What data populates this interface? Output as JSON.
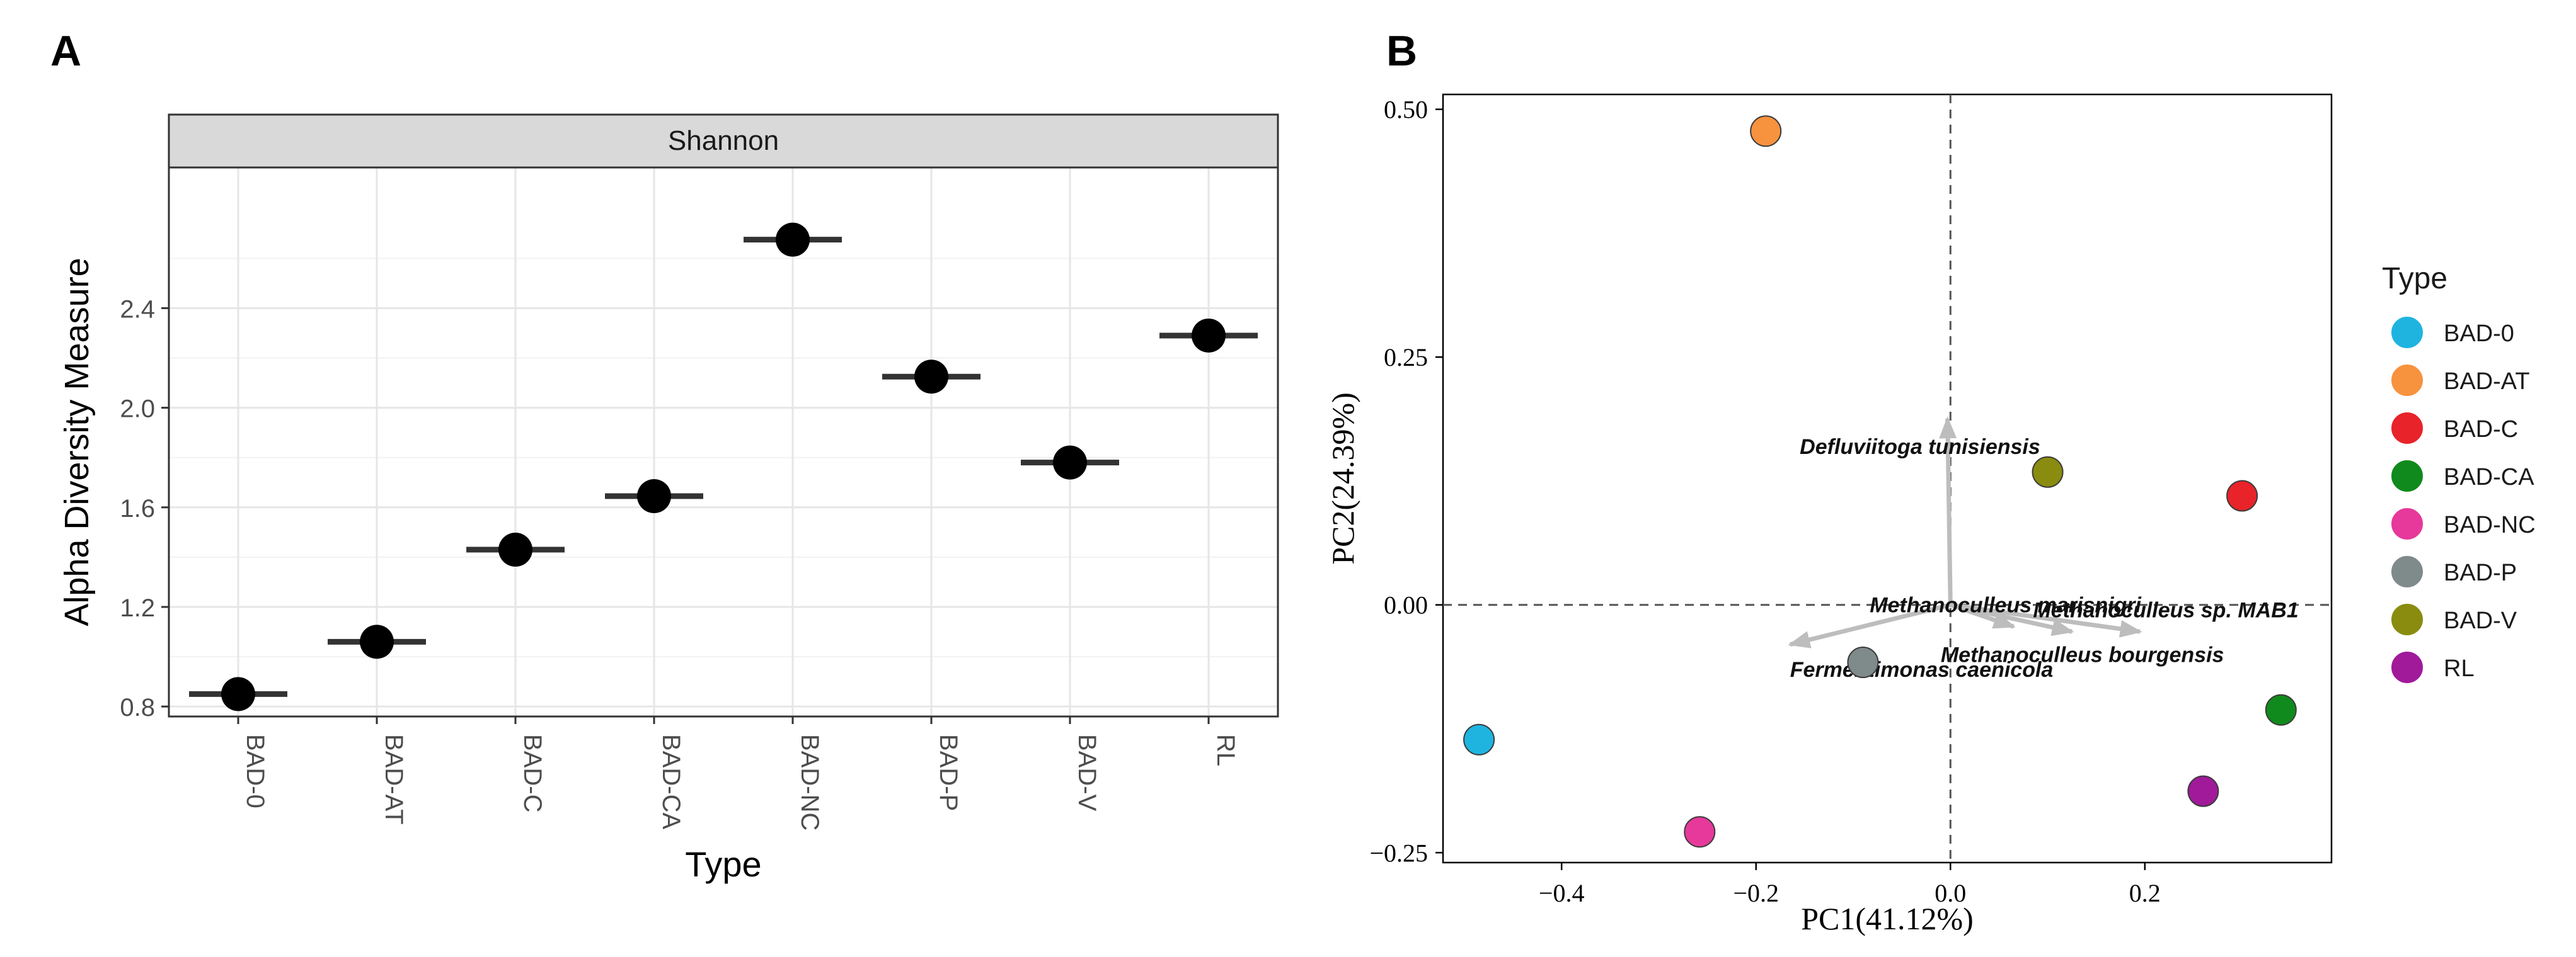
{
  "chart_data": [
    {
      "panel_label": "A",
      "type": "scatter",
      "facet_strip": "Shannon",
      "xlabel": "Type",
      "ylabel": "Alpha Diversity Measure",
      "categories": [
        "BAD-0",
        "BAD-AT",
        "BAD-C",
        "BAD-CA",
        "BAD-NC",
        "BAD-P",
        "BAD-V",
        "RL"
      ],
      "values": [
        0.85,
        1.06,
        1.43,
        1.645,
        2.675,
        2.125,
        1.78,
        2.29
      ],
      "ylim": [
        0.76,
        2.965
      ],
      "yticks": [
        0.8,
        1.2,
        1.6,
        2.0,
        2.4
      ],
      "ytick_labels": [
        "0.8",
        "1.2",
        "1.6",
        "2.0",
        "2.4"
      ],
      "grid": true,
      "point_color": "#000000",
      "strip_color": "#d9d9d9"
    },
    {
      "panel_label": "B",
      "type": "scatter",
      "xlabel": "PC1(41.12%)",
      "ylabel": "PC2(24.39%)",
      "xlim": [
        -0.522,
        0.392
      ],
      "ylim": [
        -0.26,
        0.515
      ],
      "xticks": [
        -0.4,
        -0.2,
        0.0,
        0.2
      ],
      "xtick_labels": [
        "−0.4",
        "−0.2",
        "0.0",
        "0.2"
      ],
      "yticks": [
        -0.25,
        0.0,
        0.25,
        0.5
      ],
      "ytick_labels": [
        "−0.25",
        "0.00",
        "0.25",
        "0.50"
      ],
      "reference_lines": {
        "x": 0,
        "y": 0
      },
      "grid": false,
      "points": [
        {
          "name": "BAD-0",
          "x": -0.485,
          "y": -0.136,
          "color": "#1fb4e0"
        },
        {
          "name": "BAD-AT",
          "x": -0.19,
          "y": 0.478,
          "color": "#f7923e"
        },
        {
          "name": "BAD-C",
          "x": 0.3,
          "y": 0.11,
          "color": "#e8232a"
        },
        {
          "name": "BAD-CA",
          "x": 0.34,
          "y": -0.106,
          "color": "#108a1c"
        },
        {
          "name": "BAD-NC",
          "x": -0.258,
          "y": -0.229,
          "color": "#e6399b"
        },
        {
          "name": "BAD-P",
          "x": -0.09,
          "y": -0.058,
          "color": "#7f8a8a"
        },
        {
          "name": "BAD-V",
          "x": 0.1,
          "y": 0.134,
          "color": "#8a8c10"
        },
        {
          "name": "RL",
          "x": 0.26,
          "y": -0.188,
          "color": "#a01a9a"
        }
      ],
      "arrows": [
        {
          "label": "Defluviitoga tunisiensis",
          "x": -0.003,
          "y": 0.188,
          "label_x": -0.155,
          "label_y": 0.16
        },
        {
          "label": "Methanoculleus marisnigri",
          "x": 0.065,
          "y": -0.022,
          "label_x": -0.083,
          "label_y": 0.0
        },
        {
          "label": "Methanoculleus sp. MAB1",
          "x": 0.195,
          "y": -0.027,
          "label_x": 0.085,
          "label_y": -0.005
        },
        {
          "label": "Methanoculleus bourgensis",
          "x": 0.125,
          "y": -0.027,
          "label_x": -0.01,
          "label_y": -0.05
        },
        {
          "label": "Fermentimonas caenicola",
          "x": -0.165,
          "y": -0.04,
          "label_x": -0.165,
          "label_y": -0.065
        }
      ],
      "arrow_color": "#bdbdbd",
      "legend": {
        "title": "Type",
        "position": "right",
        "entries": [
          "BAD-0",
          "BAD-AT",
          "BAD-C",
          "BAD-CA",
          "BAD-NC",
          "BAD-P",
          "BAD-V",
          "RL"
        ]
      }
    }
  ]
}
